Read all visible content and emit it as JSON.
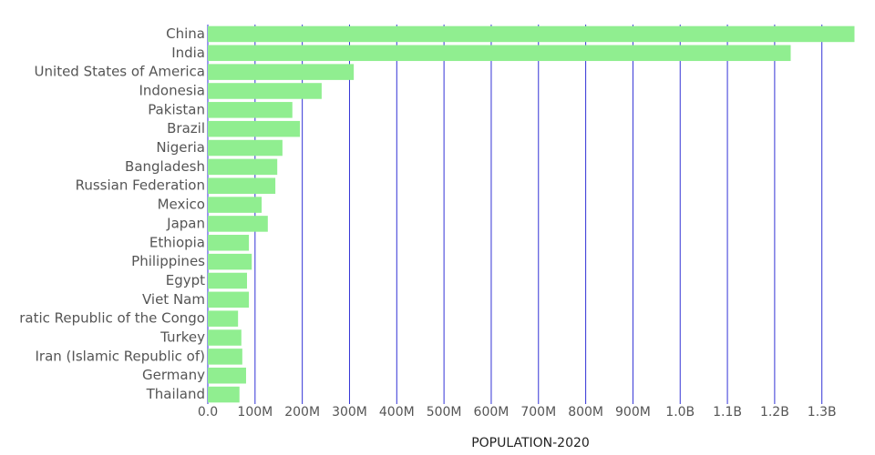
{
  "chart_data": {
    "type": "bar",
    "orientation": "horizontal",
    "x_label": "POPULATION-2020",
    "categories": [
      "China",
      "India",
      "United States of America",
      "Indonesia",
      "Pakistan",
      "Brazil",
      "Nigeria",
      "Bangladesh",
      "Russian Federation",
      "Mexico",
      "Japan",
      "Ethiopia",
      "Philippines",
      "Egypt",
      "Viet Nam",
      "ratic Republic of the Congo",
      "Turkey",
      "Iran (Islamic Republic of)",
      "Germany",
      "Thailand"
    ],
    "values": [
      1369000000,
      1234000000,
      309000000,
      241000000,
      179000000,
      195000000,
      158000000,
      147000000,
      143000000,
      114000000,
      127000000,
      87000000,
      93000000,
      83000000,
      87000000,
      64000000,
      71000000,
      73000000,
      81000000,
      67000000
    ],
    "color": "#90ee90",
    "grid_color": "#3232d6",
    "grid": true,
    "xlim": [
      0,
      1370000000
    ],
    "xticks": [
      {
        "value": 0,
        "label": "0.0"
      },
      {
        "value": 100000000,
        "label": "100M"
      },
      {
        "value": 200000000,
        "label": "200M"
      },
      {
        "value": 300000000,
        "label": "300M"
      },
      {
        "value": 400000000,
        "label": "400M"
      },
      {
        "value": 500000000,
        "label": "500M"
      },
      {
        "value": 600000000,
        "label": "600M"
      },
      {
        "value": 700000000,
        "label": "700M"
      },
      {
        "value": 800000000,
        "label": "800M"
      },
      {
        "value": 900000000,
        "label": "900M"
      },
      {
        "value": 1000000000,
        "label": "1.0B"
      },
      {
        "value": 1100000000,
        "label": "1.1B"
      },
      {
        "value": 1200000000,
        "label": "1.2B"
      },
      {
        "value": 1300000000,
        "label": "1.3B"
      }
    ]
  }
}
